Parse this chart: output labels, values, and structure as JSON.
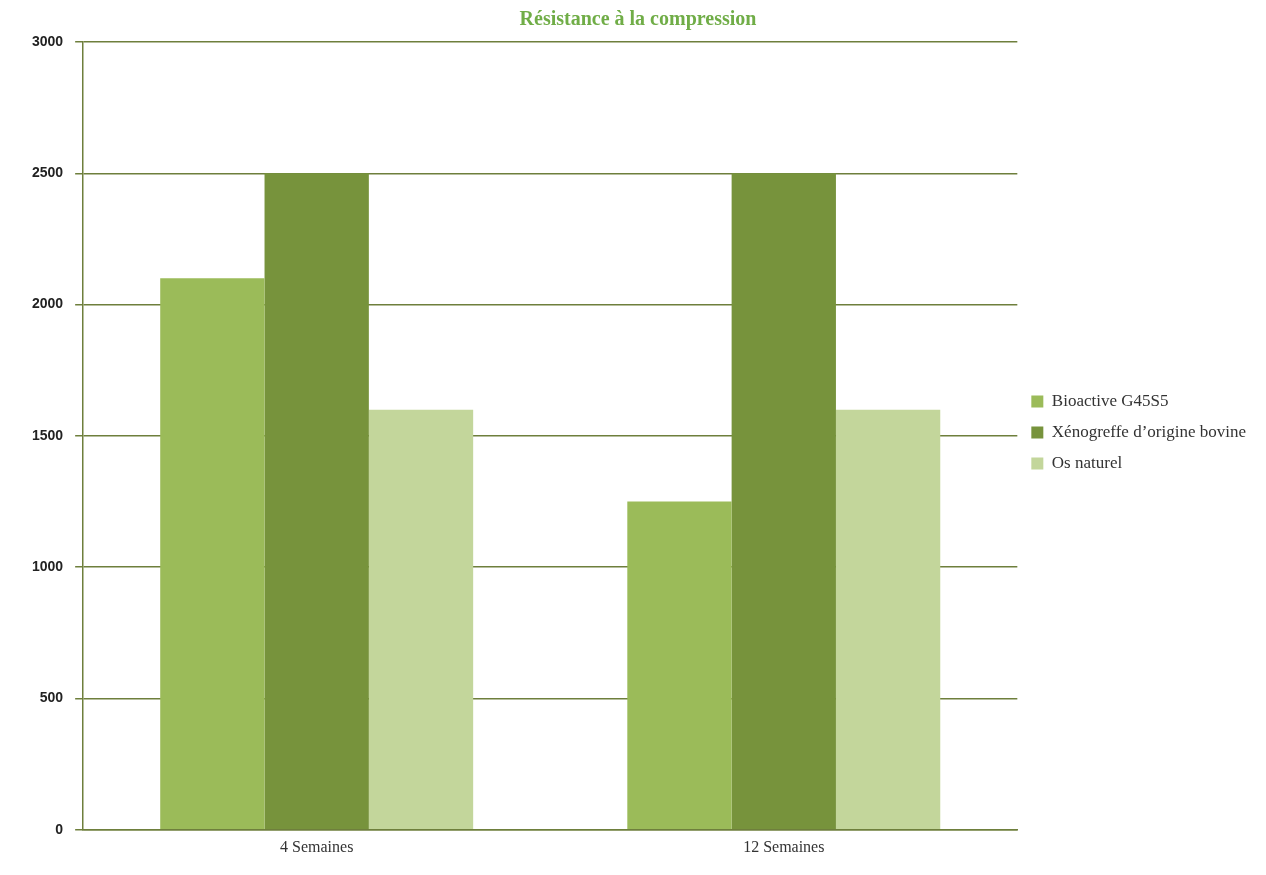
{
  "chart_data": {
    "type": "bar",
    "title": "Résistance à la compression",
    "categories": [
      "4 Semaines",
      "12 Semaines"
    ],
    "series": [
      {
        "name": "Bioactive G45S5",
        "color": "#9bbb59",
        "values": [
          2100,
          1250
        ]
      },
      {
        "name": "Xénogreffe d’origine bovine",
        "color": "#77933c",
        "values": [
          2500,
          2500
        ]
      },
      {
        "name": "Os naturel",
        "color": "#c3d69b",
        "values": [
          1600,
          1600
        ]
      }
    ],
    "ylim": [
      0,
      3000
    ],
    "yticks": [
      0,
      500,
      1000,
      1500,
      2000,
      2500,
      3000
    ],
    "grid": "y",
    "legend": "right"
  }
}
